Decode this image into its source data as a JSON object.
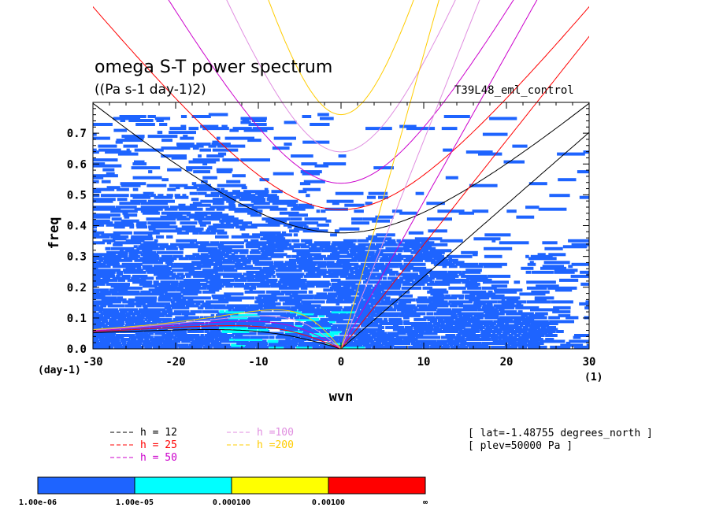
{
  "chart_data": {
    "type": "heatmap",
    "title": "omega S-T power spectrum",
    "subtitle": "((Pa s-1 day-1)2)",
    "run_label": "T39L48_eml_control",
    "xlabel": "wvn",
    "ylabel": "freq",
    "x_unit": "(1)",
    "y_unit": "(day-1)",
    "xlim": [
      -30,
      30
    ],
    "ylim": [
      0.0,
      0.8
    ],
    "x_ticks": [
      -30,
      -20,
      -10,
      0,
      10,
      20,
      30
    ],
    "x_tick_labels": [
      "-30",
      "-20",
      "-10",
      "0",
      "10",
      "20",
      "30"
    ],
    "y_ticks": [
      0.0,
      0.1,
      0.2,
      0.3,
      0.4,
      0.5,
      0.6,
      0.7
    ],
    "y_tick_labels": [
      "0.0",
      "0.1",
      "0.2",
      "0.3",
      "0.4",
      "0.5",
      "0.6",
      "0.7"
    ],
    "field_summary": {
      "dominant_level": "1.00e-06 to 1.00e-05",
      "dense_region": {
        "wvn": [
          -30,
          12
        ],
        "freq": [
          0.0,
          0.35
        ]
      },
      "sparse_region": {
        "wvn": [
          -30,
          30
        ],
        "freq": [
          0.35,
          0.75
        ]
      },
      "secondary_level_region": {
        "wvn": [
          -15,
          0
        ],
        "freq": [
          0.0,
          0.12
        ]
      }
    },
    "dispersion_curves": [
      {
        "label": "h = 12",
        "equivalent_depth_m": 12,
        "color": "#000000"
      },
      {
        "label": "h = 25",
        "equivalent_depth_m": 25,
        "color": "#ff0000"
      },
      {
        "label": "h = 50",
        "equivalent_depth_m": 50,
        "color": "#cc00cc"
      },
      {
        "label": "h =100",
        "equivalent_depth_m": 100,
        "color": "#e08ee0"
      },
      {
        "label": "h =200",
        "equivalent_depth_m": 200,
        "color": "#ffcc00"
      }
    ],
    "info": [
      "[ lat=-1.48755 degrees_north ]",
      "[ plev=50000 Pa ]"
    ],
    "colorbar": {
      "colors": [
        "#1e64ff",
        "#00ffff",
        "#ffff00",
        "#ff0000"
      ],
      "labels": [
        "1.00e-06",
        "1.00e-05",
        "0.000100",
        "0.00100",
        "∞"
      ]
    }
  }
}
